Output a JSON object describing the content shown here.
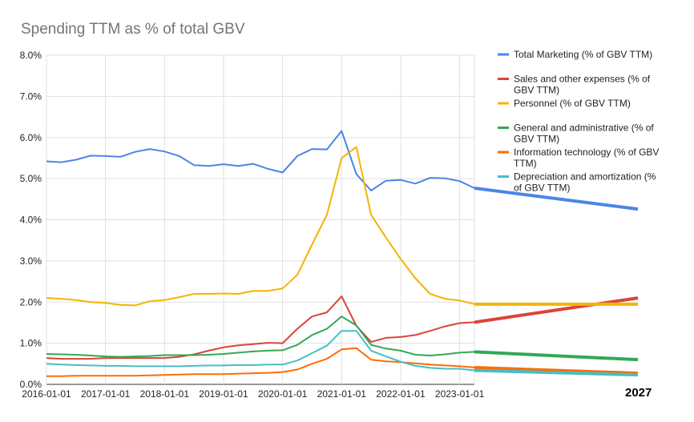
{
  "chart_data": {
    "type": "line",
    "title": "Spending TTM as % of total GBV",
    "xlabel": "",
    "ylabel": "",
    "x_ticks": [
      "2016-01-01",
      "2017-01-01",
      "2018-01-01",
      "2019-01-01",
      "2020-01-01",
      "2021-01-01",
      "2022-01-01",
      "2023-01-01"
    ],
    "xlim": [
      "2016-01-01",
      "2023-04-01"
    ],
    "ylim": [
      0,
      8
    ],
    "y_ticks": [
      "0.0%",
      "1.0%",
      "2.0%",
      "3.0%",
      "4.0%",
      "5.0%",
      "6.0%",
      "7.0%",
      "8.0%"
    ],
    "grid": true,
    "legend_position": "right",
    "annotation": "2027",
    "x": [
      "2016-01",
      "2016-04",
      "2016-07",
      "2016-10",
      "2017-01",
      "2017-04",
      "2017-07",
      "2017-10",
      "2018-01",
      "2018-04",
      "2018-07",
      "2018-10",
      "2019-01",
      "2019-04",
      "2019-07",
      "2019-10",
      "2020-01",
      "2020-04",
      "2020-07",
      "2020-10",
      "2021-01",
      "2021-04",
      "2021-07",
      "2021-10",
      "2022-01",
      "2022-04",
      "2022-07",
      "2022-10",
      "2023-01",
      "2023-04"
    ],
    "series": [
      {
        "name": "Total Marketing (% of GBV TTM)",
        "color": "#4a86e8",
        "values": [
          5.42,
          5.4,
          5.46,
          5.56,
          5.55,
          5.53,
          5.65,
          5.72,
          5.66,
          5.55,
          5.33,
          5.31,
          5.35,
          5.31,
          5.36,
          5.24,
          5.15,
          5.55,
          5.72,
          5.71,
          6.16,
          5.11,
          4.71,
          4.95,
          4.97,
          4.88,
          5.02,
          5.01,
          4.94,
          4.77
        ],
        "trend_end": 4.26
      },
      {
        "name": "Sales and other expenses (% of GBV TTM)",
        "color": "#db4437",
        "values": [
          0.64,
          0.62,
          0.62,
          0.62,
          0.64,
          0.64,
          0.64,
          0.64,
          0.64,
          0.67,
          0.73,
          0.82,
          0.9,
          0.95,
          0.98,
          1.01,
          1.0,
          1.35,
          1.65,
          1.75,
          2.14,
          1.42,
          1.03,
          1.13,
          1.15,
          1.2,
          1.3,
          1.41,
          1.49,
          1.51
        ],
        "trend_end": 2.1
      },
      {
        "name": "Personnel (% of GBV TTM)",
        "color": "#f4b400",
        "values": [
          2.1,
          2.08,
          2.05,
          2.0,
          1.98,
          1.93,
          1.92,
          2.02,
          2.05,
          2.12,
          2.2,
          2.2,
          2.21,
          2.2,
          2.27,
          2.27,
          2.33,
          2.66,
          3.4,
          4.12,
          5.5,
          5.77,
          4.12,
          3.57,
          3.05,
          2.58,
          2.2,
          2.08,
          2.04,
          1.95
        ],
        "trend_end": 1.95
      },
      {
        "name": "General and administrative (% of GBV TTM)",
        "color": "#34a853",
        "values": [
          0.74,
          0.73,
          0.72,
          0.7,
          0.68,
          0.67,
          0.68,
          0.69,
          0.71,
          0.71,
          0.71,
          0.72,
          0.74,
          0.77,
          0.8,
          0.82,
          0.83,
          0.96,
          1.2,
          1.35,
          1.65,
          1.43,
          0.96,
          0.87,
          0.82,
          0.72,
          0.7,
          0.73,
          0.77,
          0.79
        ],
        "trend_end": 0.6
      },
      {
        "name": "Information technology (% of GBV TTM)",
        "color": "#ff6d01",
        "values": [
          0.2,
          0.2,
          0.21,
          0.21,
          0.21,
          0.21,
          0.21,
          0.22,
          0.23,
          0.24,
          0.25,
          0.25,
          0.25,
          0.26,
          0.27,
          0.28,
          0.3,
          0.36,
          0.5,
          0.62,
          0.85,
          0.88,
          0.6,
          0.56,
          0.54,
          0.51,
          0.48,
          0.46,
          0.44,
          0.41
        ],
        "trend_end": 0.27
      },
      {
        "name": "Depreciation and amortization (% of GBV TTM)",
        "color": "#46bdc6",
        "values": [
          0.5,
          0.48,
          0.47,
          0.46,
          0.45,
          0.45,
          0.44,
          0.44,
          0.44,
          0.44,
          0.45,
          0.46,
          0.46,
          0.47,
          0.47,
          0.48,
          0.48,
          0.58,
          0.76,
          0.94,
          1.3,
          1.3,
          0.82,
          0.68,
          0.55,
          0.45,
          0.4,
          0.38,
          0.38,
          0.34
        ],
        "trend_end": 0.23
      }
    ]
  }
}
